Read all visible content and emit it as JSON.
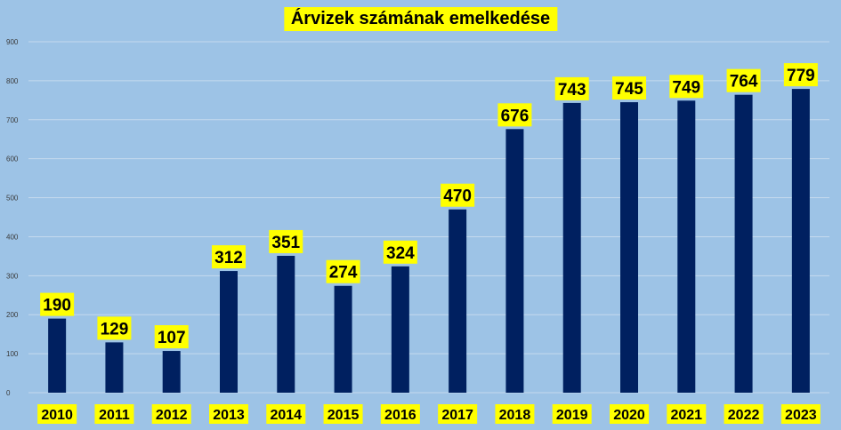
{
  "colors": {
    "background": "#9DC3E6",
    "bar": "#002060",
    "label_bg": "#FFFF00",
    "gridline": "#C5DAEE",
    "axis_text": "#3A3A3A"
  },
  "chart_data": {
    "type": "bar",
    "title": "Árvizek számának emelkedése",
    "categories": [
      "2010",
      "2011",
      "2012",
      "2013",
      "2014",
      "2015",
      "2016",
      "2017",
      "2018",
      "2019",
      "2020",
      "2021",
      "2022",
      "2023"
    ],
    "values": [
      190,
      129,
      107,
      312,
      351,
      274,
      324,
      470,
      676,
      743,
      745,
      749,
      764,
      779
    ],
    "ylim": [
      0,
      900
    ],
    "yticks": [
      0,
      100,
      200,
      300,
      400,
      500,
      600,
      700,
      800,
      900
    ],
    "grid": true,
    "legend": "none",
    "data_labels": true,
    "xlabel": "",
    "ylabel": ""
  }
}
